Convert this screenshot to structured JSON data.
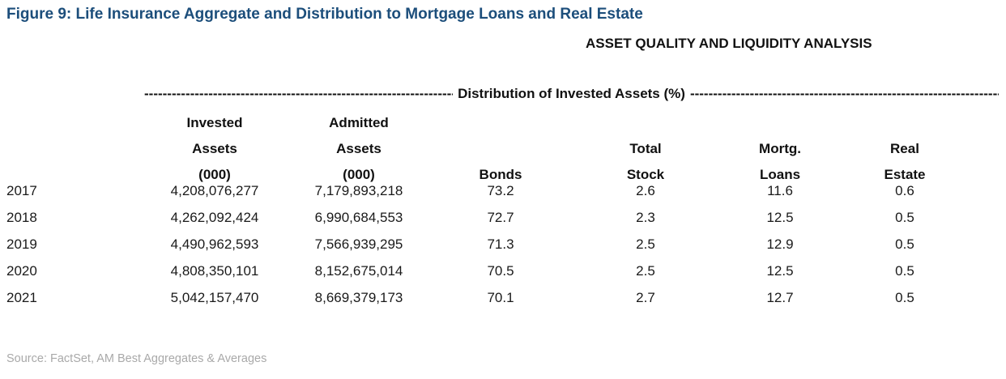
{
  "page": {
    "title": "Figure 9: Life Insurance Aggregate and Distribution to Mortgage Loans and Real Estate",
    "subtitle": "ASSET QUALITY AND LIQUIDITY ANALYSIS",
    "source": "Source: FactSet, AM Best Aggregates & Averages",
    "colors": {
      "title": "#1c4e7b",
      "body_text": "#1a1a1a",
      "source": "#a9a9a9"
    }
  },
  "divider": {
    "dashes_left": "----------------------------------------------------------------------------------------",
    "label": "Distribution of Invested Assets (%)",
    "dashes_right": "----------------------------------------------------------------------------------------"
  },
  "chart_data": {
    "type": "table",
    "title": "Figure 9: Life Insurance Aggregate and Distribution to Mortgage Loans and Real Estate",
    "section_header": "ASSET QUALITY AND LIQUIDITY ANALYSIS",
    "group_header": "Distribution of Invested Assets (%)",
    "columns": [
      {
        "id": "year",
        "lines": [
          "",
          "",
          ""
        ]
      },
      {
        "id": "invested_assets_000",
        "lines": [
          "Invested",
          "Assets",
          "(000)"
        ]
      },
      {
        "id": "admitted_assets_000",
        "lines": [
          "Admitted",
          "Assets",
          "(000)"
        ]
      },
      {
        "id": "bonds",
        "lines": [
          "",
          "",
          "Bonds"
        ]
      },
      {
        "id": "total_stock",
        "lines": [
          "",
          "Total",
          "Stock"
        ]
      },
      {
        "id": "mortg_loans",
        "lines": [
          "",
          "Mortg.",
          "Loans"
        ]
      },
      {
        "id": "real_estate",
        "lines": [
          "",
          "Real",
          "Estate"
        ]
      }
    ],
    "rows": [
      [
        "2017",
        "4,208,076,277",
        "7,179,893,218",
        "73.2",
        "2.6",
        "11.6",
        "0.6"
      ],
      [
        "2018",
        "4,262,092,424",
        "6,990,684,553",
        "72.7",
        "2.3",
        "12.5",
        "0.5"
      ],
      [
        "2019",
        "4,490,962,593",
        "7,566,939,295",
        "71.3",
        "2.5",
        "12.9",
        "0.5"
      ],
      [
        "2020",
        "4,808,350,101",
        "8,152,675,014",
        "70.5",
        "2.5",
        "12.5",
        "0.5"
      ],
      [
        "2021",
        "5,042,157,470",
        "8,669,379,173",
        "70.1",
        "2.7",
        "12.7",
        "0.5"
      ]
    ]
  }
}
